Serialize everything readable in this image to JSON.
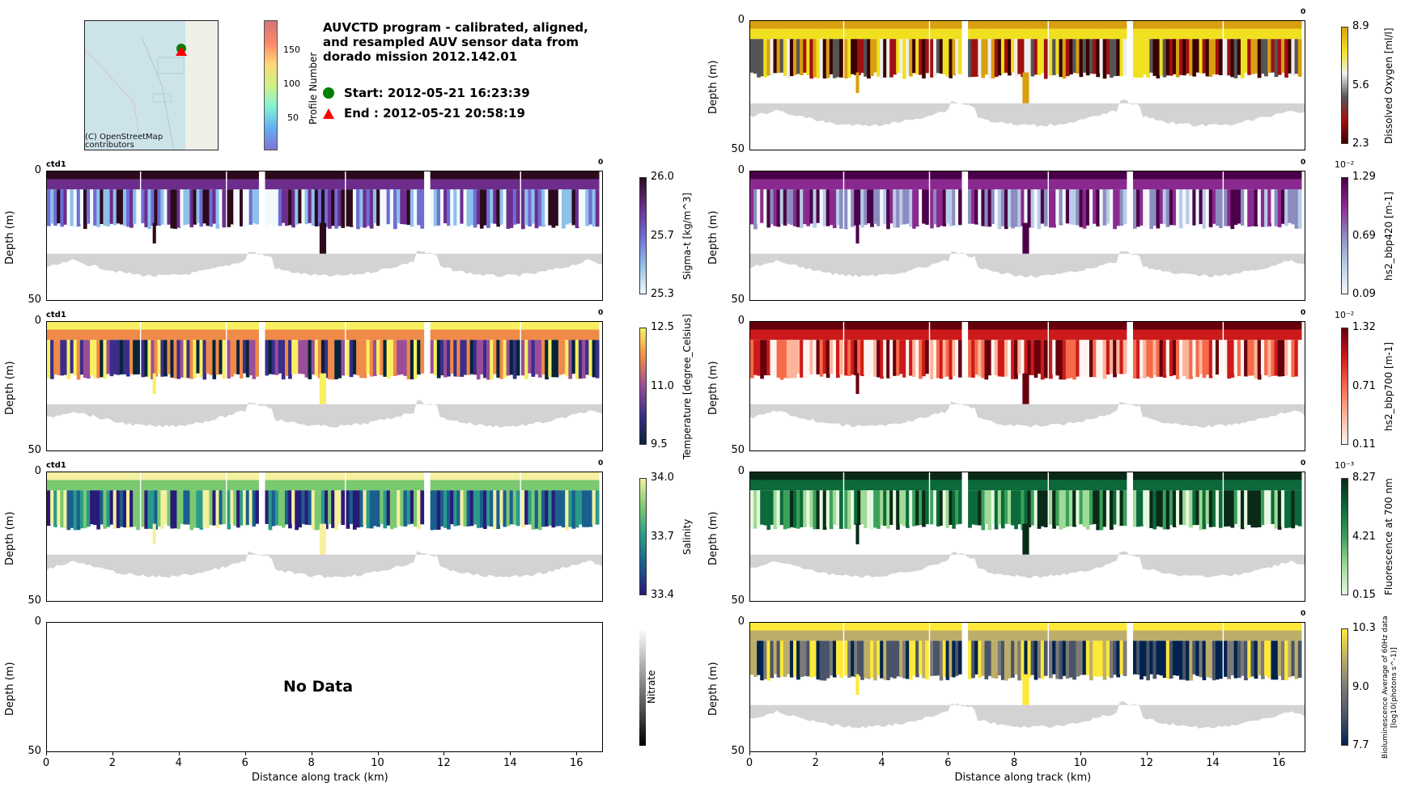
{
  "header": {
    "title_lines": [
      "AUVCTD program - calibrated, aligned,",
      "and resampled AUV sensor data from",
      "dorado mission 2012.142.01"
    ],
    "start_label": "Start: 2012-05-21 16:23:39",
    "end_label": "End  : 2012-05-21 20:58:19",
    "start_marker_color": "#008000",
    "end_marker_color": "#ff0000"
  },
  "map": {
    "credit_line1": "(C) OpenStreetMap",
    "credit_line2": "contributors",
    "colorbar_label": "Profile Number",
    "colorbar_ticks": [
      "150",
      "100",
      "50"
    ]
  },
  "chart_data": [
    {
      "type": "heatmap",
      "id": "sigma_t",
      "panel_tag": "ctd1",
      "corner_label": "0",
      "ylabel": "Depth (m)",
      "ylim": [
        50,
        0
      ],
      "xlim": [
        0,
        16.8
      ],
      "colorbar_label": "Sigma-t [kg/m^3]",
      "colorbar_ticks": [
        "26.0",
        "25.7",
        "25.3"
      ],
      "colors": [
        "#f2fafc",
        "#8ec0ea",
        "#6f6cd4",
        "#6c2d8c",
        "#2c0a1c"
      ]
    },
    {
      "type": "heatmap",
      "id": "temperature",
      "panel_tag": "ctd1",
      "corner_label": "0",
      "ylabel": "Depth (m)",
      "ylim": [
        50,
        0
      ],
      "xlim": [
        0,
        16.8
      ],
      "colorbar_label": "Temperature [degree_Celsius]",
      "colorbar_ticks": [
        "12.5",
        "11.0",
        "9.5"
      ],
      "colors": [
        "#06243a",
        "#3a2e8a",
        "#9a4e9a",
        "#f08a48",
        "#f8f060"
      ]
    },
    {
      "type": "heatmap",
      "id": "salinity",
      "panel_tag": "ctd1",
      "corner_label": "0",
      "ylabel": "Depth (m)",
      "ylim": [
        50,
        0
      ],
      "xlim": [
        0,
        16.8
      ],
      "colorbar_label": "Salinity",
      "colorbar_ticks": [
        "34.0",
        "33.7",
        "33.4"
      ],
      "colors": [
        "#2a1a78",
        "#1a5e8e",
        "#2a9a8a",
        "#7ac870",
        "#f4f0a0"
      ]
    },
    {
      "type": "heatmap",
      "id": "nitrate",
      "panel_tag": "",
      "corner_label": "",
      "ylabel": "Depth (m)",
      "ylim": [
        50,
        0
      ],
      "xlim": [
        0,
        16.8
      ],
      "xlabel": "Distance along track (km)",
      "xticks": [
        "0",
        "2",
        "4",
        "6",
        "8",
        "10",
        "12",
        "14",
        "16"
      ],
      "no_data_text": "No Data",
      "colorbar_label": "Nitrate",
      "colorbar_ticks": [],
      "colors": [
        "#000000",
        "#ffffff"
      ]
    },
    {
      "type": "heatmap",
      "id": "oxygen",
      "panel_tag": "",
      "corner_label": "0",
      "ylabel": "Depth (m)",
      "ylim": [
        50,
        0
      ],
      "xlim": [
        0,
        16.8
      ],
      "colorbar_label": "Dissolved Oxygen [ml/l]",
      "colorbar_ticks": [
        "8.9",
        "5.6",
        "2.3"
      ],
      "colors": [
        "#3a0000",
        "#a01010",
        "#555555",
        "#eeeeee",
        "#f0e020",
        "#d8a010"
      ]
    },
    {
      "type": "heatmap",
      "id": "bbp420",
      "panel_tag": "",
      "corner_label": "0",
      "ylabel": "Depth (m)",
      "ylim": [
        50,
        0
      ],
      "xlim": [
        0,
        16.8
      ],
      "colorbar_label": "hs2_bbp420 [m-1]",
      "colorbar_exponent": "10⁻²",
      "colorbar_ticks": [
        "1.29",
        "0.69",
        "0.09"
      ],
      "colors": [
        "#f4f8fc",
        "#b8cce6",
        "#8c8cc0",
        "#8a2a90",
        "#4a0048"
      ]
    },
    {
      "type": "heatmap",
      "id": "bbp700",
      "panel_tag": "",
      "corner_label": "0",
      "ylabel": "Depth (m)",
      "ylim": [
        50,
        0
      ],
      "xlim": [
        0,
        16.8
      ],
      "colorbar_label": "hs2_bbp700 [m-1]",
      "colorbar_exponent": "10⁻²",
      "colorbar_ticks": [
        "1.32",
        "0.71",
        "0.11"
      ],
      "colors": [
        "#fff4f0",
        "#fcb49a",
        "#f56a4a",
        "#cc1a1a",
        "#67000d"
      ]
    },
    {
      "type": "heatmap",
      "id": "fluorescence",
      "panel_tag": "",
      "corner_label": "0",
      "ylabel": "Depth (m)",
      "ylim": [
        50,
        0
      ],
      "xlim": [
        0,
        16.8
      ],
      "colorbar_label": "Fluorescence at 700 nm",
      "colorbar_exponent": "10⁻³",
      "colorbar_ticks": [
        "8.27",
        "4.21",
        "0.15"
      ],
      "colors": [
        "#e6f8e0",
        "#a0da96",
        "#3aa05a",
        "#0a6a3a",
        "#0a2a18"
      ]
    },
    {
      "type": "heatmap",
      "id": "bioluminescence",
      "panel_tag": "",
      "corner_label": "0",
      "ylabel": "Depth (m)",
      "ylim": [
        50,
        0
      ],
      "xlim": [
        0,
        16.8
      ],
      "xlabel": "Distance along track (km)",
      "xticks": [
        "0",
        "2",
        "4",
        "6",
        "8",
        "10",
        "12",
        "14",
        "16"
      ],
      "colorbar_label_lines": [
        "Bioluminescence Average of 60Hz data",
        "[log10(photons s^-1)]"
      ],
      "colorbar_ticks": [
        "10.3",
        "9.0",
        "7.7"
      ],
      "colors": [
        "#00224e",
        "#4a5468",
        "#7c7b78",
        "#bcae6a",
        "#fee838"
      ]
    }
  ],
  "axis": {
    "ytick_top": "0",
    "ytick_bottom": "50"
  }
}
